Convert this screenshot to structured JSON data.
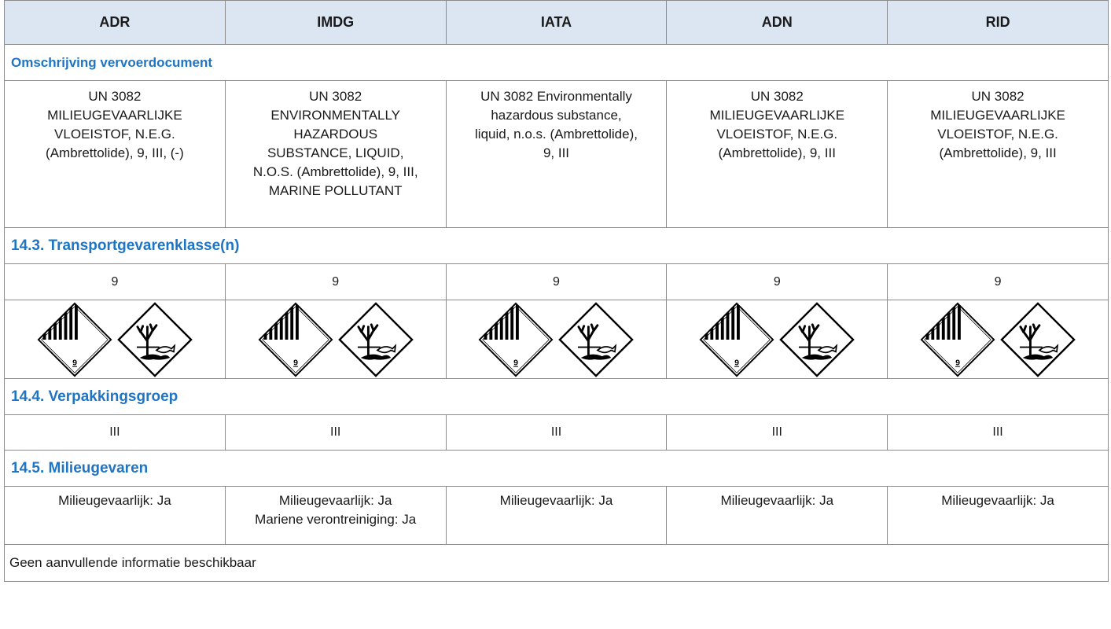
{
  "headers": [
    "ADR",
    "IMDG",
    "IATA",
    "ADN",
    "RID"
  ],
  "sections": {
    "description_title": "Omschrijving vervoerdocument",
    "class_title": "14.3. Transportgevarenklasse(n)",
    "packing_title": "14.4. Verpakkingsgroep",
    "env_title": "14.5. Milieugevaren"
  },
  "descriptions": [
    [
      "UN 3082",
      "MILIEUGEVAARLIJKE",
      "VLOEISTOF, N.E.G.",
      "(Ambrettolide), 9, III, (-)"
    ],
    [
      "UN 3082",
      "ENVIRONMENTALLY",
      "HAZARDOUS",
      "SUBSTANCE, LIQUID,",
      "N.O.S. (Ambrettolide), 9, III,",
      "MARINE POLLUTANT"
    ],
    [
      "UN 3082 Environmentally",
      "hazardous substance,",
      "liquid, n.o.s. (Ambrettolide),",
      "9, III"
    ],
    [
      "UN 3082",
      "MILIEUGEVAARLIJKE",
      "VLOEISTOF, N.E.G.",
      "(Ambrettolide), 9, III"
    ],
    [
      "UN 3082",
      "MILIEUGEVAARLIJKE",
      "VLOEISTOF, N.E.G.",
      "(Ambrettolide), 9, III"
    ]
  ],
  "classes": [
    "9",
    "9",
    "9",
    "9",
    "9"
  ],
  "pictograms": [
    {
      "class_icon": "class-9-miscellaneous-icon",
      "class_label": "9",
      "env_icon": "environmental-hazard-icon"
    },
    {
      "class_icon": "class-9-miscellaneous-icon",
      "class_label": "9",
      "env_icon": "environmental-hazard-icon"
    },
    {
      "class_icon": "class-9-miscellaneous-icon",
      "class_label": "9",
      "env_icon": "environmental-hazard-icon"
    },
    {
      "class_icon": "class-9-miscellaneous-icon",
      "class_label": "9",
      "env_icon": "environmental-hazard-icon"
    },
    {
      "class_icon": "class-9-miscellaneous-icon",
      "class_label": "9",
      "env_icon": "environmental-hazard-icon"
    }
  ],
  "packing_groups": [
    "III",
    "III",
    "III",
    "III",
    "III"
  ],
  "env_hazards": [
    [
      "Milieugevaarlijk: Ja"
    ],
    [
      "Milieugevaarlijk: Ja",
      "Mariene verontreiniging: Ja"
    ],
    [
      "Milieugevaarlijk: Ja"
    ],
    [
      "Milieugevaarlijk: Ja"
    ],
    [
      "Milieugevaarlijk: Ja"
    ]
  ],
  "footer_note": "Geen aanvullende informatie beschikbaar",
  "colors": {
    "header_bg": "#dce6f2",
    "section_title": "#1f75c4",
    "border": "#8c8c8c"
  }
}
